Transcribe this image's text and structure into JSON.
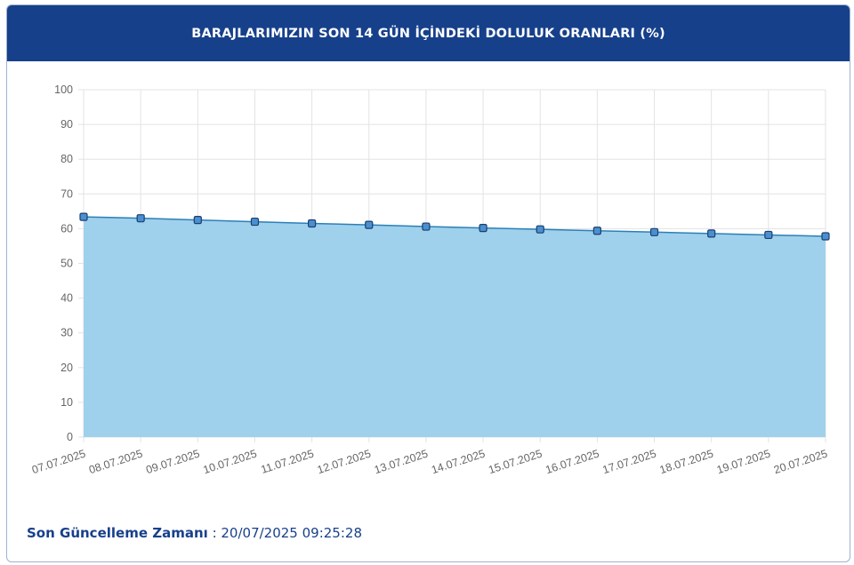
{
  "header": {
    "title": "BARAJLARIMIZIN SON 14 GÜN İÇİNDEKİ DOLULUK ORANLARI (%)"
  },
  "footer": {
    "label": "Son Güncelleme Zamanı",
    "separator": " : ",
    "value": "20/07/2025 09:25:28"
  },
  "colors": {
    "header_bg": "#17408b",
    "area_fill": "#9dd0ec",
    "line": "#2b7fb8",
    "point_fill": "#4a8fd0"
  },
  "chart_data": {
    "type": "area",
    "title": "BARAJLARIMIZIN SON 14 GÜN İÇİNDEKİ DOLULUK ORANLARI (%)",
    "xlabel": "",
    "ylabel": "",
    "ylim": [
      0,
      100
    ],
    "yticks": [
      0,
      10,
      20,
      30,
      40,
      50,
      60,
      70,
      80,
      90,
      100
    ],
    "grid": true,
    "categories": [
      "07.07.2025",
      "08.07.2025",
      "09.07.2025",
      "10.07.2025",
      "11.07.2025",
      "12.07.2025",
      "13.07.2025",
      "14.07.2025",
      "15.07.2025",
      "16.07.2025",
      "17.07.2025",
      "18.07.2025",
      "19.07.2025",
      "20.07.2025"
    ],
    "series": [
      {
        "values": [
          63.4,
          63.0,
          62.5,
          62.0,
          61.5,
          61.1,
          60.6,
          60.2,
          59.8,
          59.4,
          59.0,
          58.6,
          58.2,
          57.8
        ]
      }
    ]
  }
}
